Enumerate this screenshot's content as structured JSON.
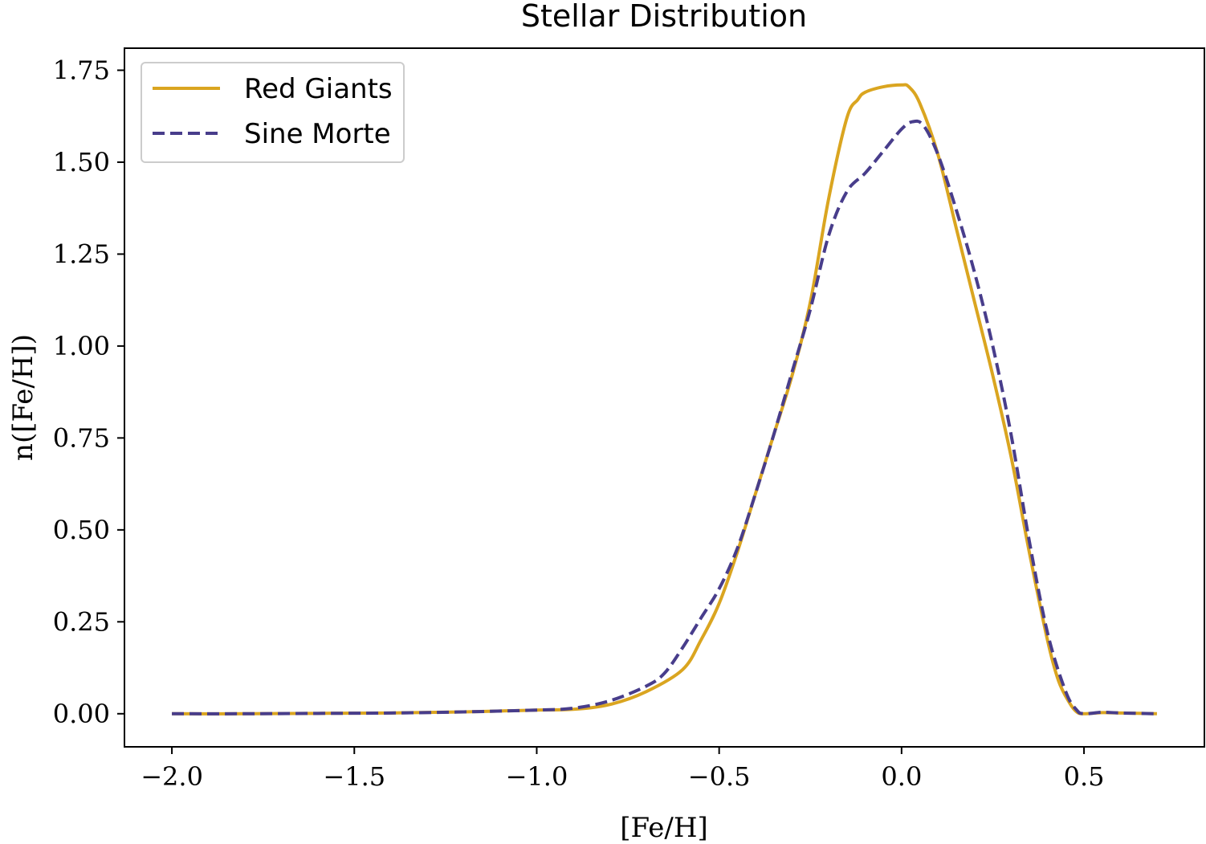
{
  "chart_data": {
    "type": "line",
    "title": "Stellar Distribution",
    "xlabel": "[Fe/H]",
    "ylabel": "n([Fe/H])",
    "xlim": [
      -2.13,
      0.83
    ],
    "ylim": [
      -0.09,
      1.81
    ],
    "xticks": [
      -2.0,
      -1.5,
      -1.0,
      -0.5,
      0.0,
      0.5
    ],
    "xtick_labels": [
      "−2.0",
      "−1.5",
      "−1.0",
      "−0.5",
      "0.0",
      "0.5"
    ],
    "yticks": [
      0.0,
      0.25,
      0.5,
      0.75,
      1.0,
      1.25,
      1.5,
      1.75
    ],
    "ytick_labels": [
      "0.00",
      "0.25",
      "0.50",
      "0.75",
      "1.00",
      "1.25",
      "1.50",
      "1.75"
    ],
    "grid": false,
    "legend_position": "top-left",
    "series": [
      {
        "name": "Red Giants",
        "color": "#DAA520",
        "style": "solid",
        "x": [
          -2.0,
          -1.8,
          -1.6,
          -1.4,
          -1.2,
          -1.0,
          -0.9,
          -0.8,
          -0.7,
          -0.6,
          -0.55,
          -0.5,
          -0.45,
          -0.4,
          -0.35,
          -0.3,
          -0.25,
          -0.2,
          -0.15,
          -0.12,
          -0.1,
          -0.05,
          0.0,
          0.02,
          0.05,
          0.1,
          0.15,
          0.2,
          0.25,
          0.3,
          0.35,
          0.4,
          0.43,
          0.46,
          0.48,
          0.5,
          0.55,
          0.6,
          0.7
        ],
        "y": [
          0.0,
          0.0,
          0.001,
          0.002,
          0.005,
          0.01,
          0.012,
          0.025,
          0.06,
          0.12,
          0.2,
          0.3,
          0.44,
          0.6,
          0.76,
          0.92,
          1.12,
          1.4,
          1.62,
          1.67,
          1.69,
          1.705,
          1.71,
          1.705,
          1.66,
          1.52,
          1.32,
          1.12,
          0.92,
          0.7,
          0.44,
          0.2,
          0.09,
          0.03,
          0.005,
          0.0,
          0.003,
          0.002,
          0.0
        ]
      },
      {
        "name": "Sine Morte",
        "color": "#483D8B",
        "style": "dashed",
        "x": [
          -2.0,
          -1.8,
          -1.6,
          -1.4,
          -1.2,
          -1.0,
          -0.9,
          -0.8,
          -0.7,
          -0.65,
          -0.6,
          -0.55,
          -0.5,
          -0.45,
          -0.4,
          -0.35,
          -0.3,
          -0.25,
          -0.2,
          -0.15,
          -0.1,
          -0.05,
          0.0,
          0.03,
          0.06,
          0.1,
          0.15,
          0.2,
          0.25,
          0.3,
          0.35,
          0.4,
          0.45,
          0.48,
          0.5,
          0.55,
          0.6,
          0.7
        ],
        "y": [
          0.0,
          0.0,
          0.001,
          0.002,
          0.005,
          0.01,
          0.015,
          0.035,
          0.075,
          0.11,
          0.18,
          0.26,
          0.34,
          0.45,
          0.6,
          0.76,
          0.93,
          1.1,
          1.3,
          1.42,
          1.47,
          1.53,
          1.59,
          1.61,
          1.6,
          1.52,
          1.37,
          1.2,
          1.0,
          0.76,
          0.47,
          0.22,
          0.06,
          0.01,
          0.0,
          0.004,
          0.002,
          0.0
        ]
      }
    ]
  }
}
